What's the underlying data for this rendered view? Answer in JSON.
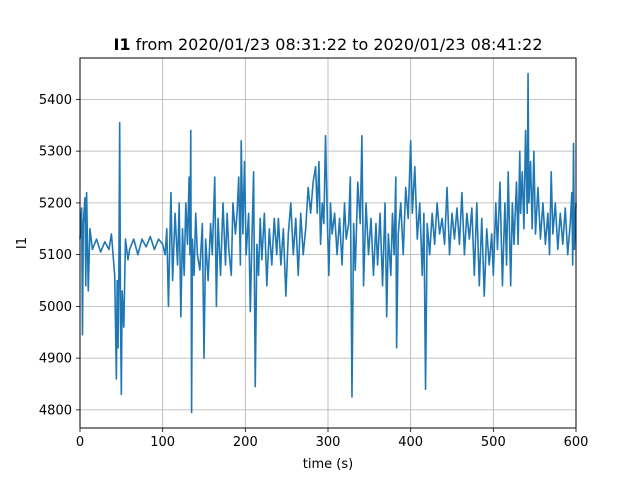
{
  "chart_data": {
    "type": "line",
    "title_bold": "I1",
    "title_rest": " from 2020/01/23 08:31:22 to 2020/01/23 08:41:22",
    "xlabel": "time (s)",
    "ylabel": "I1",
    "xlim": [
      0,
      600
    ],
    "ylim": [
      4765,
      5480
    ],
    "xticks": [
      0,
      100,
      200,
      300,
      400,
      500,
      600
    ],
    "yticks": [
      4800,
      4900,
      5000,
      5100,
      5200,
      5300,
      5400
    ],
    "grid": true,
    "series": [
      {
        "color": "#1f77b4",
        "points": [
          [
            0,
            5130
          ],
          [
            2,
            5190
          ],
          [
            3,
            4945
          ],
          [
            4,
            5160
          ],
          [
            6,
            5210
          ],
          [
            7,
            5040
          ],
          [
            8,
            5220
          ],
          [
            10,
            5030
          ],
          [
            12,
            5150
          ],
          [
            15,
            5110
          ],
          [
            20,
            5130
          ],
          [
            25,
            5105
          ],
          [
            30,
            5125
          ],
          [
            35,
            5110
          ],
          [
            38,
            5140
          ],
          [
            40,
            5100
          ],
          [
            42,
            5060
          ],
          [
            44,
            4860
          ],
          [
            45,
            5050
          ],
          [
            46,
            4920
          ],
          [
            47,
            5060
          ],
          [
            48,
            5355
          ],
          [
            49,
            4980
          ],
          [
            50,
            4830
          ],
          [
            51,
            5030
          ],
          [
            53,
            4960
          ],
          [
            55,
            5130
          ],
          [
            58,
            5090
          ],
          [
            60,
            5110
          ],
          [
            65,
            5130
          ],
          [
            70,
            5100
          ],
          [
            75,
            5130
          ],
          [
            80,
            5115
          ],
          [
            85,
            5135
          ],
          [
            90,
            5110
          ],
          [
            95,
            5130
          ],
          [
            100,
            5120
          ],
          [
            103,
            5100
          ],
          [
            105,
            5150
          ],
          [
            107,
            5000
          ],
          [
            110,
            5220
          ],
          [
            112,
            5050
          ],
          [
            115,
            5180
          ],
          [
            118,
            5080
          ],
          [
            120,
            5200
          ],
          [
            122,
            4980
          ],
          [
            124,
            5150
          ],
          [
            126,
            5060
          ],
          [
            128,
            5200
          ],
          [
            130,
            5120
          ],
          [
            132,
            5250
          ],
          [
            133,
            5100
          ],
          [
            134,
            5340
          ],
          [
            135,
            4795
          ],
          [
            136,
            5130
          ],
          [
            138,
            5060
          ],
          [
            140,
            5180
          ],
          [
            142,
            5100
          ],
          [
            145,
            5070
          ],
          [
            148,
            5160
          ],
          [
            150,
            4900
          ],
          [
            152,
            5130
          ],
          [
            155,
            5050
          ],
          [
            158,
            5160
          ],
          [
            160,
            5100
          ],
          [
            163,
            5250
          ],
          [
            165,
            5000
          ],
          [
            167,
            5170
          ],
          [
            170,
            5060
          ],
          [
            173,
            5200
          ],
          [
            176,
            5080
          ],
          [
            178,
            5180
          ],
          [
            180,
            5110
          ],
          [
            183,
            5060
          ],
          [
            185,
            5200
          ],
          [
            188,
            5140
          ],
          [
            190,
            5180
          ],
          [
            192,
            5250
          ],
          [
            194,
            5080
          ],
          [
            195,
            5320
          ],
          [
            197,
            5140
          ],
          [
            199,
            5280
          ],
          [
            201,
            5100
          ],
          [
            204,
            5180
          ],
          [
            206,
            4990
          ],
          [
            208,
            5130
          ],
          [
            210,
            5260
          ],
          [
            212,
            4845
          ],
          [
            214,
            5120
          ],
          [
            216,
            5060
          ],
          [
            218,
            5170
          ],
          [
            220,
            5090
          ],
          [
            223,
            5180
          ],
          [
            226,
            5040
          ],
          [
            229,
            5150
          ],
          [
            232,
            5080
          ],
          [
            235,
            5170
          ],
          [
            238,
            5100
          ],
          [
            240,
            5170
          ],
          [
            243,
            5080
          ],
          [
            246,
            5150
          ],
          [
            249,
            5020
          ],
          [
            252,
            5140
          ],
          [
            255,
            5200
          ],
          [
            258,
            5100
          ],
          [
            261,
            5170
          ],
          [
            264,
            5060
          ],
          [
            267,
            5180
          ],
          [
            270,
            5100
          ],
          [
            273,
            5150
          ],
          [
            276,
            5230
          ],
          [
            279,
            5180
          ],
          [
            282,
            5240
          ],
          [
            285,
            5270
          ],
          [
            287,
            5180
          ],
          [
            289,
            5280
          ],
          [
            291,
            5120
          ],
          [
            293,
            5200
          ],
          [
            295,
            5160
          ],
          [
            297,
            5330
          ],
          [
            299,
            5180
          ],
          [
            301,
            5060
          ],
          [
            303,
            5200
          ],
          [
            305,
            5140
          ],
          [
            308,
            5180
          ],
          [
            311,
            5100
          ],
          [
            314,
            5170
          ],
          [
            317,
            5080
          ],
          [
            320,
            5200
          ],
          [
            322,
            5130
          ],
          [
            325,
            5160
          ],
          [
            327,
            5250
          ],
          [
            329,
            4825
          ],
          [
            331,
            5160
          ],
          [
            333,
            5070
          ],
          [
            336,
            5240
          ],
          [
            339,
            5160
          ],
          [
            341,
            5330
          ],
          [
            343,
            5040
          ],
          [
            346,
            5200
          ],
          [
            349,
            5100
          ],
          [
            352,
            5170
          ],
          [
            355,
            5060
          ],
          [
            358,
            5160
          ],
          [
            360,
            5080
          ],
          [
            363,
            5180
          ],
          [
            366,
            5040
          ],
          [
            369,
            5200
          ],
          [
            371,
            4980
          ],
          [
            373,
            5140
          ],
          [
            376,
            5060
          ],
          [
            378,
            5180
          ],
          [
            380,
            5100
          ],
          [
            382,
            5250
          ],
          [
            383,
            4920
          ],
          [
            385,
            5140
          ],
          [
            388,
            5200
          ],
          [
            391,
            5100
          ],
          [
            394,
            5230
          ],
          [
            397,
            5170
          ],
          [
            400,
            5320
          ],
          [
            402,
            5180
          ],
          [
            405,
            5270
          ],
          [
            408,
            5130
          ],
          [
            411,
            5200
          ],
          [
            414,
            5060
          ],
          [
            416,
            5180
          ],
          [
            418,
            4840
          ],
          [
            420,
            5160
          ],
          [
            423,
            5100
          ],
          [
            426,
            5180
          ],
          [
            429,
            5120
          ],
          [
            432,
            5200
          ],
          [
            435,
            5140
          ],
          [
            438,
            5170
          ],
          [
            441,
            5120
          ],
          [
            444,
            5230
          ],
          [
            447,
            5100
          ],
          [
            450,
            5180
          ],
          [
            453,
            5130
          ],
          [
            456,
            5190
          ],
          [
            459,
            5120
          ],
          [
            462,
            5220
          ],
          [
            465,
            5100
          ],
          [
            468,
            5180
          ],
          [
            471,
            5130
          ],
          [
            474,
            5190
          ],
          [
            477,
            5060
          ],
          [
            480,
            5200
          ],
          [
            483,
            5040
          ],
          [
            486,
            5170
          ],
          [
            489,
            5020
          ],
          [
            492,
            5150
          ],
          [
            495,
            5080
          ],
          [
            498,
            5140
          ],
          [
            500,
            5060
          ],
          [
            503,
            5200
          ],
          [
            505,
            5110
          ],
          [
            508,
            5240
          ],
          [
            511,
            5040
          ],
          [
            514,
            5200
          ],
          [
            516,
            5080
          ],
          [
            518,
            5260
          ],
          [
            521,
            5040
          ],
          [
            523,
            5200
          ],
          [
            525,
            5120
          ],
          [
            528,
            5240
          ],
          [
            530,
            5120
          ],
          [
            532,
            5300
          ],
          [
            533,
            5180
          ],
          [
            535,
            5260
          ],
          [
            537,
            5150
          ],
          [
            539,
            5340
          ],
          [
            541,
            5180
          ],
          [
            542,
            5450
          ],
          [
            543,
            5200
          ],
          [
            545,
            5280
          ],
          [
            547,
            5150
          ],
          [
            549,
            5300
          ],
          [
            551,
            5140
          ],
          [
            554,
            5230
          ],
          [
            557,
            5130
          ],
          [
            560,
            5200
          ],
          [
            563,
            5120
          ],
          [
            566,
            5180
          ],
          [
            568,
            5100
          ],
          [
            570,
            5260
          ],
          [
            572,
            5140
          ],
          [
            575,
            5200
          ],
          [
            578,
            5110
          ],
          [
            581,
            5180
          ],
          [
            584,
            5120
          ],
          [
            587,
            5190
          ],
          [
            590,
            5100
          ],
          [
            593,
            5160
          ],
          [
            595,
            5220
          ],
          [
            596,
            5080
          ],
          [
            597,
            5315
          ],
          [
            598,
            5110
          ],
          [
            600,
            5200
          ]
        ]
      }
    ]
  }
}
